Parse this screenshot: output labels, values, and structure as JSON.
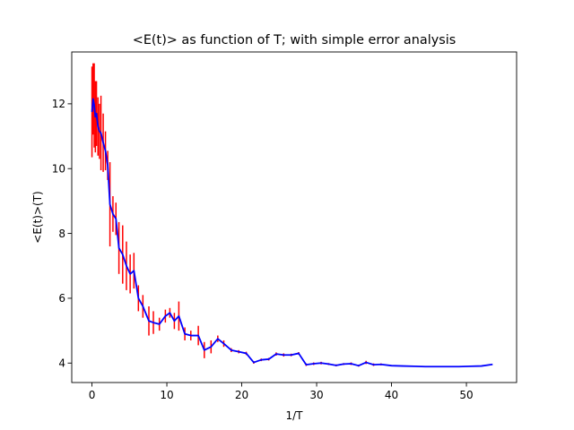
{
  "chart_data": {
    "type": "line",
    "title": "<E(t)> as function of T; with simple error analysis",
    "xlabel": "1/T",
    "ylabel": "<E(t)>(T)",
    "xlim": [
      -2.7,
      56.7
    ],
    "ylim": [
      3.4,
      13.6
    ],
    "xticks": [
      0,
      10,
      20,
      30,
      40,
      50
    ],
    "yticks": [
      4,
      6,
      8,
      10,
      12
    ],
    "grid": false,
    "legend": "none",
    "colors": {
      "line": "#0000ff",
      "errorbar": "#ff0000"
    },
    "series": [
      {
        "type": "errorbar",
        "x": [
          0.0,
          0.15,
          0.3,
          0.45,
          0.6,
          0.8,
          1.0,
          1.2,
          1.5,
          1.8,
          2.1,
          2.4,
          2.8,
          3.2,
          3.6,
          4.1,
          4.6,
          5.1,
          5.6,
          6.2,
          6.8,
          7.6,
          8.2,
          9.0,
          9.8,
          10.4,
          11.0,
          11.6,
          12.4,
          13.2,
          14.2,
          15.0,
          15.9,
          16.8,
          17.6,
          18.6,
          19.6,
          20.6,
          21.6,
          22.6,
          23.6,
          24.6,
          25.6,
          26.6,
          27.6,
          28.6,
          29.6,
          30.6,
          31.6,
          32.6,
          33.6,
          34.6,
          35.6,
          36.6,
          37.6,
          38.6
        ],
        "y": [
          11.75,
          12.15,
          11.95,
          11.6,
          11.7,
          11.3,
          11.15,
          11.1,
          10.8,
          10.55,
          10.1,
          8.9,
          8.6,
          8.45,
          7.55,
          7.35,
          7.0,
          6.75,
          6.85,
          6.0,
          5.75,
          5.3,
          5.25,
          5.2,
          5.45,
          5.55,
          5.3,
          5.45,
          4.9,
          4.85,
          4.85,
          4.4,
          4.5,
          4.75,
          4.6,
          4.4,
          4.35,
          4.3,
          4.02,
          4.1,
          4.12,
          4.28,
          4.25,
          4.25,
          4.3,
          3.95,
          3.98,
          4.0,
          3.97,
          3.93,
          3.97,
          3.98,
          3.92,
          4.02,
          3.95,
          3.96
        ],
        "yerr": [
          1.4,
          1.1,
          1.3,
          1.1,
          1.0,
          0.9,
          0.85,
          1.15,
          0.9,
          0.6,
          0.45,
          1.3,
          0.55,
          0.5,
          0.8,
          0.9,
          0.75,
          0.6,
          0.55,
          0.4,
          0.35,
          0.45,
          0.35,
          0.2,
          0.2,
          0.15,
          0.25,
          0.45,
          0.2,
          0.15,
          0.3,
          0.25,
          0.2,
          0.1,
          0.1,
          0.06,
          0.05,
          0.05,
          0.04,
          0.04,
          0.04,
          0.05,
          0.05,
          0.04,
          0.04,
          0.04,
          0.04,
          0.04,
          0.03,
          0.03,
          0.03,
          0.04,
          0.03,
          0.05,
          0.04,
          0.03
        ]
      },
      {
        "type": "line",
        "x": [
          0.0,
          0.15,
          0.3,
          0.45,
          0.6,
          0.8,
          1.0,
          1.2,
          1.5,
          1.8,
          2.1,
          2.4,
          2.8,
          3.2,
          3.6,
          4.1,
          4.6,
          5.1,
          5.6,
          6.2,
          6.8,
          7.6,
          8.2,
          9.0,
          9.8,
          10.4,
          11.0,
          11.6,
          12.4,
          13.2,
          14.2,
          15.0,
          15.9,
          16.8,
          17.6,
          18.6,
          19.6,
          20.6,
          21.6,
          22.6,
          23.6,
          24.6,
          25.6,
          26.6,
          27.6,
          28.6,
          29.6,
          30.6,
          31.6,
          32.6,
          33.6,
          34.6,
          35.6,
          36.6,
          37.6,
          38.6,
          40.0,
          41.5,
          43.0,
          44.5,
          46.0,
          47.5,
          49.0,
          50.5,
          52.0,
          53.5
        ],
        "y": [
          11.75,
          12.15,
          11.95,
          11.6,
          11.7,
          11.3,
          11.15,
          11.1,
          10.8,
          10.55,
          10.1,
          8.9,
          8.6,
          8.45,
          7.55,
          7.35,
          7.0,
          6.75,
          6.85,
          6.0,
          5.75,
          5.3,
          5.25,
          5.2,
          5.45,
          5.55,
          5.3,
          5.45,
          4.9,
          4.85,
          4.85,
          4.4,
          4.5,
          4.75,
          4.6,
          4.4,
          4.35,
          4.3,
          4.02,
          4.1,
          4.12,
          4.28,
          4.25,
          4.25,
          4.3,
          3.95,
          3.98,
          4.0,
          3.97,
          3.93,
          3.97,
          3.98,
          3.92,
          4.02,
          3.95,
          3.96,
          3.92,
          3.91,
          3.9,
          3.89,
          3.89,
          3.89,
          3.89,
          3.9,
          3.91,
          3.96
        ]
      }
    ]
  }
}
